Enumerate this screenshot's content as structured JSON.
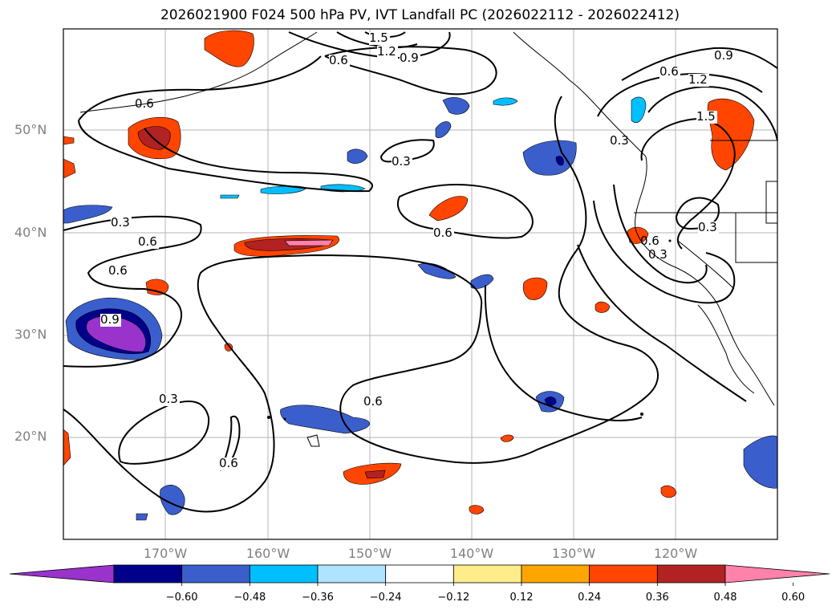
{
  "title": "2026021900 F024 500 hPa PV, IVT Landfall PC (2026022112 - 2026022412)",
  "lat_ticks": [
    "50°N",
    "40°N",
    "30°N",
    "20°N"
  ],
  "lon_ticks": [
    "170°W",
    "160°W",
    "150°W",
    "140°W",
    "130°W",
    "120°W"
  ],
  "contour_labels": [
    "1.5",
    "1.2",
    "0.9",
    "0.6",
    "0.6",
    "0.3",
    "0.3",
    "0.6",
    "0.6",
    "0.9",
    "0.3",
    "0.6",
    "0.6",
    "0.3",
    "0.6",
    "0.9",
    "1.2",
    "1.5",
    "0.6",
    "0.3",
    "0.3",
    "0.6"
  ],
  "colorbar": {
    "ticks": [
      "−0.60",
      "−0.48",
      "−0.36",
      "−0.24",
      "−0.12",
      "0.12",
      "0.24",
      "0.36",
      "0.48",
      "0.60"
    ],
    "colors": [
      "#9933cc",
      "#00008b",
      "#3a5fcd",
      "#00bfff",
      "#aee4ff",
      "#ffffff",
      "#ffec8b",
      "#ffa500",
      "#ff4500",
      "#b22222",
      "#ff82ab"
    ]
  }
}
